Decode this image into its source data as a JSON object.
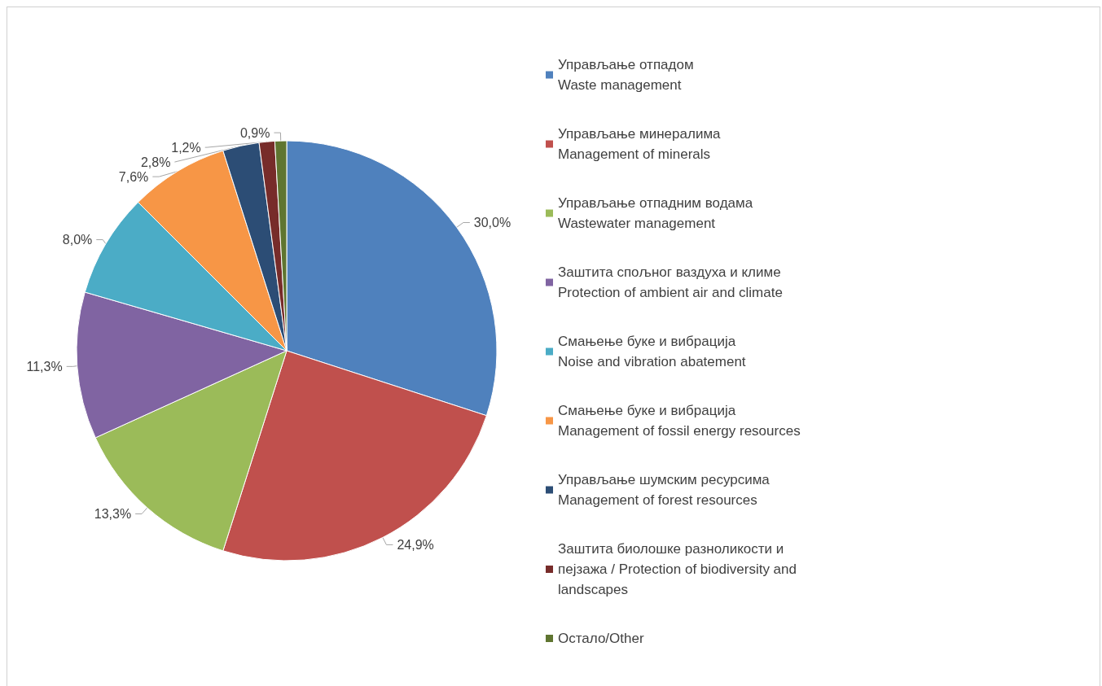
{
  "chart_data": {
    "type": "pie",
    "categories": [
      "Управљање отпадом\nWaste management",
      "Управљање минералима\nManagement of minerals",
      "Управљање отпадним водама\nWastewater management",
      "Заштита спољног ваздуха и климе\nProtection of ambient air and climate",
      "Смањење буке и вибрација\nNoise and vibration abatement",
      "Смањење буке и вибрација\nManagement of fossil energy resources",
      "Управљање шумским ресурсима\nManagement of forest resources",
      "Заштита биолошке разноликости и\nпејзажа / Protection of biodiversity and\nlandscapes",
      "Остало/Other"
    ],
    "values": [
      30.0,
      24.9,
      13.3,
      11.3,
      8.0,
      7.6,
      2.8,
      1.2,
      0.9
    ],
    "value_labels": [
      "30,0%",
      "24,9%",
      "13,3%",
      "11,3%",
      "8,0%",
      "7,6%",
      "2,8%",
      "1,2%",
      "0,9%"
    ],
    "colors": [
      "#4f81bd",
      "#c0504d",
      "#9bbb59",
      "#8064a2",
      "#4bacc6",
      "#f79646",
      "#2c4d75",
      "#772c2a",
      "#5f7530"
    ],
    "legend": "right"
  }
}
